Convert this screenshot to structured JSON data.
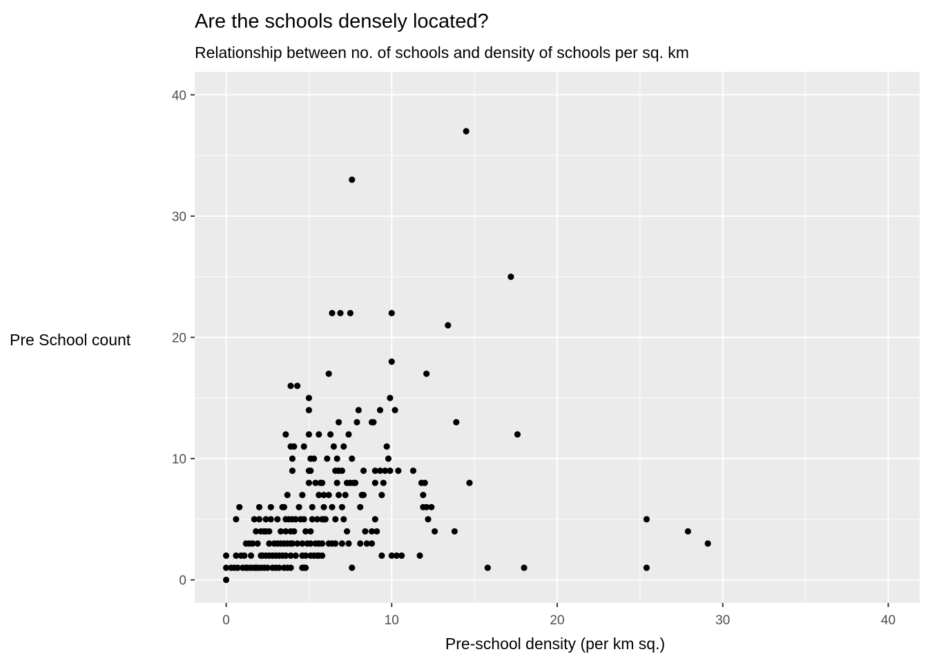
{
  "chart_data": {
    "type": "scatter",
    "title": "Are the schools densely located?",
    "subtitle": "Relationship between no. of schools and density of schools per sq. km",
    "xlabel": "Pre-school density (per km sq.)",
    "ylabel": "Pre School count",
    "xlim": [
      -1.9,
      41.9
    ],
    "ylim": [
      -1.9,
      41.9
    ],
    "xticks": [
      0,
      10,
      20,
      30,
      40
    ],
    "yticks": [
      0,
      10,
      20,
      30,
      40
    ],
    "grid": true,
    "legend": "none",
    "point_color": "#000000",
    "panel_color": "#ebebeb",
    "points": [
      [
        0.0,
        0
      ],
      [
        0.0,
        1
      ],
      [
        0.0,
        2
      ],
      [
        0.3,
        1
      ],
      [
        0.5,
        1
      ],
      [
        0.6,
        2
      ],
      [
        0.6,
        5
      ],
      [
        0.7,
        1
      ],
      [
        0.8,
        6
      ],
      [
        0.9,
        2
      ],
      [
        1.0,
        1
      ],
      [
        1.1,
        2
      ],
      [
        1.2,
        1
      ],
      [
        1.2,
        3
      ],
      [
        1.3,
        1
      ],
      [
        1.4,
        3
      ],
      [
        1.5,
        1
      ],
      [
        1.5,
        2
      ],
      [
        1.6,
        3
      ],
      [
        1.7,
        1
      ],
      [
        1.7,
        5
      ],
      [
        1.8,
        1
      ],
      [
        1.8,
        4
      ],
      [
        1.9,
        1
      ],
      [
        1.9,
        3
      ],
      [
        2.0,
        5
      ],
      [
        2.0,
        6
      ],
      [
        2.1,
        1
      ],
      [
        2.1,
        2
      ],
      [
        2.1,
        4
      ],
      [
        2.2,
        2
      ],
      [
        2.3,
        1
      ],
      [
        2.3,
        4
      ],
      [
        2.4,
        2
      ],
      [
        2.4,
        4
      ],
      [
        2.4,
        5
      ],
      [
        2.5,
        1
      ],
      [
        2.6,
        2
      ],
      [
        2.6,
        4
      ],
      [
        2.6,
        3
      ],
      [
        2.7,
        5
      ],
      [
        2.7,
        6
      ],
      [
        2.8,
        1
      ],
      [
        2.8,
        2
      ],
      [
        2.9,
        3
      ],
      [
        3.0,
        1
      ],
      [
        3.0,
        2
      ],
      [
        3.1,
        3
      ],
      [
        3.1,
        5
      ],
      [
        3.2,
        1
      ],
      [
        3.2,
        2
      ],
      [
        3.3,
        3
      ],
      [
        3.3,
        4
      ],
      [
        3.4,
        2
      ],
      [
        3.4,
        6
      ],
      [
        3.5,
        1
      ],
      [
        3.5,
        3
      ],
      [
        3.5,
        6
      ],
      [
        3.6,
        2
      ],
      [
        3.6,
        4
      ],
      [
        3.6,
        5
      ],
      [
        3.6,
        12
      ],
      [
        3.7,
        3
      ],
      [
        3.7,
        7
      ],
      [
        3.7,
        1
      ],
      [
        3.8,
        5
      ],
      [
        3.9,
        1
      ],
      [
        3.9,
        2
      ],
      [
        3.9,
        3
      ],
      [
        3.9,
        4
      ],
      [
        3.9,
        11
      ],
      [
        3.9,
        16
      ],
      [
        4.0,
        3
      ],
      [
        4.0,
        5
      ],
      [
        4.0,
        9
      ],
      [
        4.0,
        10
      ],
      [
        4.1,
        4
      ],
      [
        4.1,
        11
      ],
      [
        4.2,
        2
      ],
      [
        4.2,
        5
      ],
      [
        4.3,
        3
      ],
      [
        4.3,
        16
      ],
      [
        4.4,
        6
      ],
      [
        4.5,
        5
      ],
      [
        4.6,
        1
      ],
      [
        4.6,
        2
      ],
      [
        4.6,
        3
      ],
      [
        4.6,
        7
      ],
      [
        4.7,
        11
      ],
      [
        4.7,
        5
      ],
      [
        4.7,
        1
      ],
      [
        4.8,
        1
      ],
      [
        4.8,
        2
      ],
      [
        4.8,
        4
      ],
      [
        4.9,
        3
      ],
      [
        5.0,
        15
      ],
      [
        5.0,
        14
      ],
      [
        5.0,
        12
      ],
      [
        5.0,
        9
      ],
      [
        5.0,
        8
      ],
      [
        5.1,
        2
      ],
      [
        5.1,
        10
      ],
      [
        5.1,
        3
      ],
      [
        5.1,
        4
      ],
      [
        5.1,
        9
      ],
      [
        5.2,
        5
      ],
      [
        5.2,
        6
      ],
      [
        5.3,
        10
      ],
      [
        5.3,
        2
      ],
      [
        5.4,
        3
      ],
      [
        5.4,
        8
      ],
      [
        5.5,
        2
      ],
      [
        5.5,
        5
      ],
      [
        5.6,
        3
      ],
      [
        5.6,
        7
      ],
      [
        5.6,
        2
      ],
      [
        5.6,
        12
      ],
      [
        5.7,
        8
      ],
      [
        5.8,
        5
      ],
      [
        5.8,
        3
      ],
      [
        5.8,
        2
      ],
      [
        5.8,
        8
      ],
      [
        5.9,
        7
      ],
      [
        5.9,
        5
      ],
      [
        5.9,
        6
      ],
      [
        6.0,
        5
      ],
      [
        6.1,
        10
      ],
      [
        6.2,
        3
      ],
      [
        6.2,
        7
      ],
      [
        6.2,
        17
      ],
      [
        6.3,
        12
      ],
      [
        6.4,
        22
      ],
      [
        6.4,
        3
      ],
      [
        6.4,
        6
      ],
      [
        6.5,
        11
      ],
      [
        6.6,
        9
      ],
      [
        6.6,
        5
      ],
      [
        6.6,
        3
      ],
      [
        6.7,
        10
      ],
      [
        6.7,
        8
      ],
      [
        6.8,
        7
      ],
      [
        6.8,
        13
      ],
      [
        6.8,
        9
      ],
      [
        6.9,
        22
      ],
      [
        7.0,
        6
      ],
      [
        7.0,
        3
      ],
      [
        7.0,
        9
      ],
      [
        7.1,
        5
      ],
      [
        7.1,
        11
      ],
      [
        7.2,
        7
      ],
      [
        7.3,
        8
      ],
      [
        7.3,
        4
      ],
      [
        7.4,
        12
      ],
      [
        7.4,
        3
      ],
      [
        7.5,
        22
      ],
      [
        7.5,
        8
      ],
      [
        7.6,
        10
      ],
      [
        7.6,
        1
      ],
      [
        7.6,
        33
      ],
      [
        7.7,
        8
      ],
      [
        7.8,
        8
      ],
      [
        7.9,
        13
      ],
      [
        8.0,
        14
      ],
      [
        8.1,
        6
      ],
      [
        8.1,
        3
      ],
      [
        8.2,
        7
      ],
      [
        8.3,
        7
      ],
      [
        8.3,
        9
      ],
      [
        8.4,
        4
      ],
      [
        8.5,
        3
      ],
      [
        8.8,
        13
      ],
      [
        8.8,
        4
      ],
      [
        8.8,
        3
      ],
      [
        8.9,
        13
      ],
      [
        9.0,
        8
      ],
      [
        9.0,
        5
      ],
      [
        9.0,
        9
      ],
      [
        9.1,
        4
      ],
      [
        9.3,
        14
      ],
      [
        9.3,
        9
      ],
      [
        9.4,
        7
      ],
      [
        9.4,
        2
      ],
      [
        9.5,
        8
      ],
      [
        9.6,
        9
      ],
      [
        9.7,
        11
      ],
      [
        9.8,
        10
      ],
      [
        9.9,
        15
      ],
      [
        9.9,
        9
      ],
      [
        10.0,
        22
      ],
      [
        10.0,
        2
      ],
      [
        10.0,
        18
      ],
      [
        10.2,
        14
      ],
      [
        10.3,
        2
      ],
      [
        10.4,
        9
      ],
      [
        10.6,
        2
      ],
      [
        11.3,
        9
      ],
      [
        11.7,
        2
      ],
      [
        11.8,
        8
      ],
      [
        11.9,
        6
      ],
      [
        11.9,
        7
      ],
      [
        12.0,
        8
      ],
      [
        12.1,
        17
      ],
      [
        12.1,
        6
      ],
      [
        12.2,
        5
      ],
      [
        12.4,
        6
      ],
      [
        12.6,
        4
      ],
      [
        13.4,
        21
      ],
      [
        13.8,
        4
      ],
      [
        13.9,
        13
      ],
      [
        14.5,
        37
      ],
      [
        14.7,
        8
      ],
      [
        15.8,
        1
      ],
      [
        17.2,
        25
      ],
      [
        17.6,
        12
      ],
      [
        18.0,
        1
      ],
      [
        25.4,
        5
      ],
      [
        25.4,
        1
      ],
      [
        27.9,
        4
      ],
      [
        29.1,
        3
      ]
    ]
  }
}
